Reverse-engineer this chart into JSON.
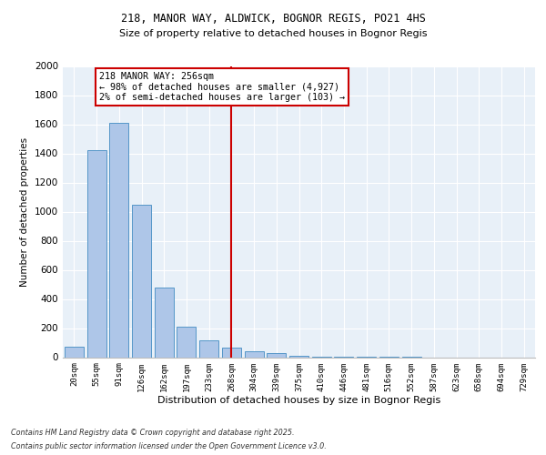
{
  "title1": "218, MANOR WAY, ALDWICK, BOGNOR REGIS, PO21 4HS",
  "title2": "Size of property relative to detached houses in Bognor Regis",
  "xlabel": "Distribution of detached houses by size in Bognor Regis",
  "ylabel": "Number of detached properties",
  "categories": [
    "20sqm",
    "55sqm",
    "91sqm",
    "126sqm",
    "162sqm",
    "197sqm",
    "233sqm",
    "268sqm",
    "304sqm",
    "339sqm",
    "375sqm",
    "410sqm",
    "446sqm",
    "481sqm",
    "516sqm",
    "552sqm",
    "587sqm",
    "623sqm",
    "658sqm",
    "694sqm",
    "729sqm"
  ],
  "values": [
    75,
    1420,
    1610,
    1050,
    480,
    210,
    115,
    65,
    40,
    30,
    10,
    5,
    3,
    2,
    1,
    1,
    0,
    0,
    0,
    0,
    0
  ],
  "bar_color": "#aec6e8",
  "bar_edge_color": "#5596c8",
  "vline_index": 7,
  "vline_color": "#cc0000",
  "annotation_text": "218 MANOR WAY: 256sqm\n← 98% of detached houses are smaller (4,927)\n2% of semi-detached houses are larger (103) →",
  "annotation_box_edgecolor": "#cc0000",
  "annotation_bg": "#ffffff",
  "ylim": [
    0,
    2000
  ],
  "yticks": [
    0,
    200,
    400,
    600,
    800,
    1000,
    1200,
    1400,
    1600,
    1800,
    2000
  ],
  "footnote1": "Contains HM Land Registry data © Crown copyright and database right 2025.",
  "footnote2": "Contains public sector information licensed under the Open Government Licence v3.0.",
  "bg_color": "#e8f0f8",
  "fig_bg_color": "#ffffff",
  "grid_color": "#ffffff"
}
